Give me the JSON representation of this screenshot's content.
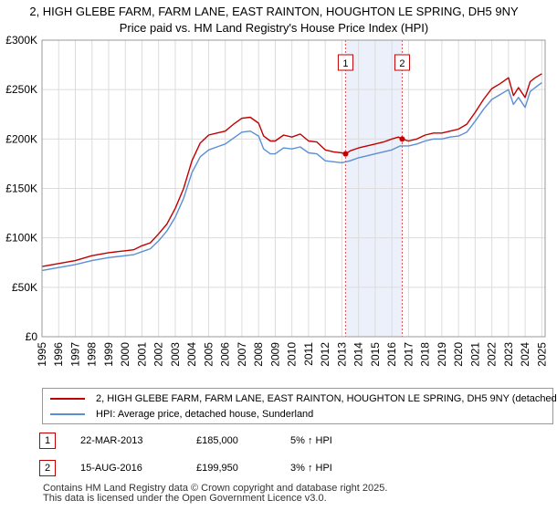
{
  "header": {
    "title_line1": "2, HIGH GLEBE FARM, FARM LANE, EAST RAINTON, HOUGHTON LE SPRING, DH5 9NY",
    "title_line2": "Price paid vs. HM Land Registry's House Price Index (HPI)"
  },
  "chart_data": {
    "type": "line",
    "title": "2, HIGH GLEBE FARM, FARM LANE, EAST RAINTON, HOUGHTON LE SPRING, DH5 9NY",
    "subtitle": "Price paid vs. HM Land Registry's House Price Index (HPI)",
    "xlabel": "",
    "ylabel": "",
    "xlim": [
      1995,
      2025.2
    ],
    "ylim": [
      0,
      300000
    ],
    "x_ticks": [
      "1995",
      "1996",
      "1997",
      "1998",
      "1999",
      "2000",
      "2001",
      "2002",
      "2003",
      "2004",
      "2005",
      "2006",
      "2007",
      "2008",
      "2009",
      "2010",
      "2011",
      "2012",
      "2013",
      "2014",
      "2015",
      "2016",
      "2017",
      "2018",
      "2019",
      "2020",
      "2021",
      "2022",
      "2023",
      "2024",
      "2025"
    ],
    "y_ticks": [
      {
        "value": 0,
        "label": "£0"
      },
      {
        "value": 50000,
        "label": "£50K"
      },
      {
        "value": 100000,
        "label": "£100K"
      },
      {
        "value": 150000,
        "label": "£150K"
      },
      {
        "value": 200000,
        "label": "£200K"
      },
      {
        "value": 250000,
        "label": "£250K"
      },
      {
        "value": 300000,
        "label": "£300K"
      }
    ],
    "grid": true,
    "shaded_region": {
      "from": 2013.22,
      "to": 2016.62,
      "color": "#dde6f7"
    },
    "series": [
      {
        "name": "2, HIGH GLEBE FARM, FARM LANE, EAST RAINTON, HOUGHTON LE SPRING, DH5 9NY (detached",
        "color": "#c00000",
        "x": [
          1995,
          1996,
          1997,
          1998,
          1999,
          2000,
          2000.5,
          2001,
          2001.5,
          2002,
          2002.5,
          2003,
          2003.5,
          2004,
          2004.5,
          2005,
          2005.5,
          2006,
          2006.5,
          2007,
          2007.5,
          2008,
          2008.3,
          2008.7,
          2009,
          2009.5,
          2010,
          2010.5,
          2011,
          2011.5,
          2012,
          2012.5,
          2013,
          2013.22,
          2013.5,
          2014,
          2014.5,
          2015,
          2015.5,
          2016,
          2016.4,
          2016.62,
          2017,
          2017.5,
          2018,
          2018.5,
          2019,
          2019.5,
          2020,
          2020.5,
          2021,
          2021.5,
          2022,
          2022.5,
          2023,
          2023.3,
          2023.6,
          2024,
          2024.3,
          2024.6,
          2025
        ],
        "values": [
          71000,
          74000,
          77000,
          82000,
          85000,
          87000,
          88000,
          92000,
          95000,
          104000,
          114000,
          130000,
          150000,
          178000,
          196000,
          204000,
          206000,
          208000,
          215000,
          221000,
          222000,
          216000,
          203000,
          198000,
          198000,
          204000,
          202000,
          205000,
          198000,
          197000,
          189000,
          187000,
          186000,
          185000,
          188000,
          191000,
          193000,
          195000,
          197000,
          200000,
          202000,
          199950,
          198000,
          200000,
          204000,
          206000,
          206000,
          208000,
          210000,
          215000,
          227000,
          240000,
          251000,
          256000,
          262000,
          244000,
          252000,
          242000,
          258000,
          262000,
          266000
        ]
      },
      {
        "name": "HPI: Average price, detached house, Sunderland",
        "color": "#5b8fd4",
        "x": [
          1995,
          1996,
          1997,
          1998,
          1999,
          2000,
          2000.5,
          2001,
          2001.5,
          2002,
          2002.5,
          2003,
          2003.5,
          2004,
          2004.5,
          2005,
          2005.5,
          2006,
          2006.5,
          2007,
          2007.5,
          2008,
          2008.3,
          2008.7,
          2009,
          2009.5,
          2010,
          2010.5,
          2011,
          2011.5,
          2012,
          2012.5,
          2013,
          2013.5,
          2014,
          2014.5,
          2015,
          2015.5,
          2016,
          2016.5,
          2017,
          2017.5,
          2018,
          2018.5,
          2019,
          2019.5,
          2020,
          2020.5,
          2021,
          2021.5,
          2022,
          2022.5,
          2023,
          2023.3,
          2023.6,
          2024,
          2024.3,
          2024.6,
          2025
        ],
        "values": [
          67000,
          70000,
          73000,
          77000,
          80000,
          82000,
          83000,
          86000,
          89000,
          97000,
          107000,
          121000,
          140000,
          166000,
          182000,
          189000,
          192000,
          195000,
          201000,
          207000,
          208000,
          203000,
          190000,
          185000,
          185000,
          191000,
          190000,
          192000,
          186000,
          185000,
          178000,
          177000,
          176000,
          178000,
          181000,
          183000,
          185000,
          187000,
          189000,
          193000,
          193000,
          195000,
          198000,
          200000,
          200000,
          202000,
          203000,
          207000,
          218000,
          230000,
          240000,
          245000,
          250000,
          235000,
          242000,
          232000,
          248000,
          252000,
          257000
        ]
      }
    ],
    "annotations": [
      {
        "id": "1",
        "x": 2013.22
      },
      {
        "id": "2",
        "x": 2016.62
      }
    ],
    "sale_points": [
      {
        "x": 2013.22,
        "value": 185000
      },
      {
        "x": 2016.62,
        "value": 199950
      }
    ]
  },
  "legend": {
    "items": [
      {
        "label": "2, HIGH GLEBE FARM, FARM LANE, EAST RAINTON, HOUGHTON LE SPRING, DH5 9NY (detached",
        "color": "#c00000"
      },
      {
        "label": "HPI: Average price, detached house, Sunderland",
        "color": "#5b8fd4"
      }
    ]
  },
  "transactions": [
    {
      "id": "1",
      "date": "22-MAR-2013",
      "price": "£185,000",
      "hpi": "5% ↑ HPI"
    },
    {
      "id": "2",
      "date": "15-AUG-2016",
      "price": "£199,950",
      "hpi": "3% ↑ HPI"
    }
  ],
  "footer": {
    "line1": "Contains HM Land Registry data © Crown copyright and database right 2025.",
    "line2": "This data is licensed under the Open Government Licence v3.0."
  }
}
